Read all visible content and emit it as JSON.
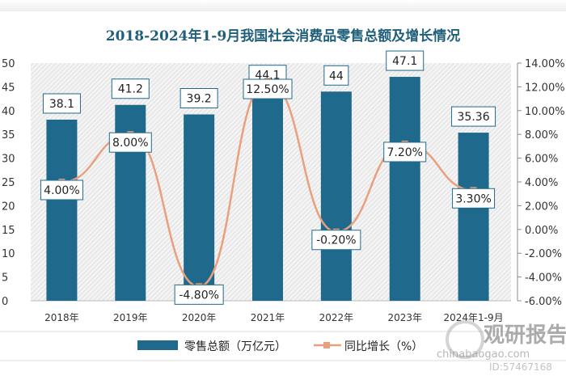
{
  "chart_data": {
    "type": "bar+line",
    "title": "2018-2024年1-9月我国社会消费品零售总额及增长情况",
    "categories": [
      "2018年",
      "2019年",
      "2020年",
      "2021年",
      "2022年",
      "2023年",
      "2024年1-9月"
    ],
    "series": [
      {
        "name": "零售总额（万亿元）",
        "type": "bar",
        "axis": "left",
        "values": [
          38.1,
          41.2,
          39.2,
          44.1,
          44,
          47.1,
          35.36
        ],
        "labels": [
          "38.1",
          "41.2",
          "39.2",
          "44.1",
          "44",
          "47.1",
          "35.36"
        ],
        "color": "#1f6a8c"
      },
      {
        "name": "同比增长（%）",
        "type": "line",
        "axis": "right",
        "values": [
          4.0,
          8.0,
          -4.8,
          12.5,
          -0.2,
          7.2,
          3.3
        ],
        "labels": [
          "4.00%",
          "8.00%",
          "-4.80%",
          "12.50%",
          "-0.20%",
          "7.20%",
          "3.30%"
        ],
        "color": "#e8a07e"
      }
    ],
    "ylim_left": [
      0,
      50
    ],
    "yticks_left": [
      "0",
      "5",
      "10",
      "15",
      "20",
      "25",
      "30",
      "35",
      "40",
      "45",
      "50"
    ],
    "ylim_right": [
      -6,
      14
    ],
    "yticks_right": [
      "-6.00%",
      "-4.00%",
      "-2.00%",
      "0.00%",
      "2.00%",
      "4.00%",
      "6.00%",
      "8.00%",
      "10.00%",
      "12.00%",
      "14.00%"
    ],
    "legend_position": "bottom",
    "grid": false
  },
  "watermark": {
    "text": "观研报告网",
    "site": "chinabaogao.com",
    "id": "ID:57467168"
  }
}
